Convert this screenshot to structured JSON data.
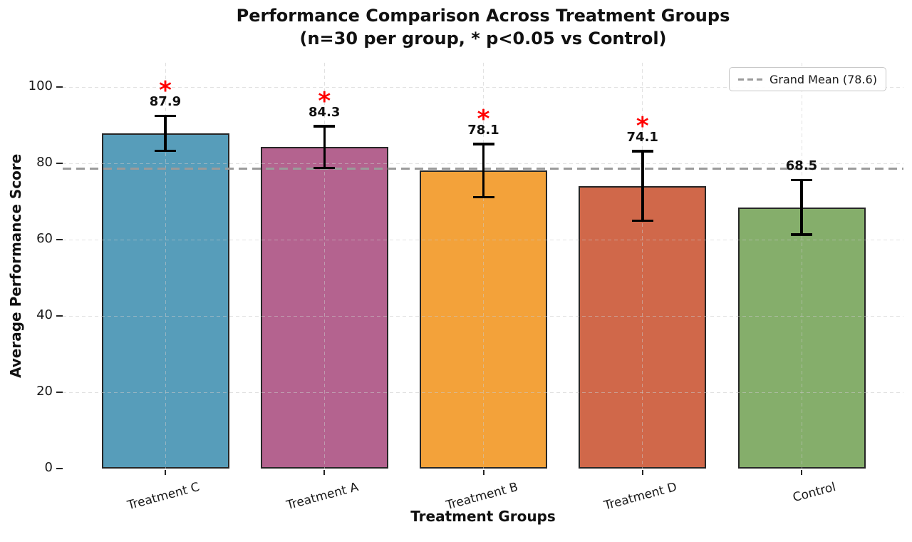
{
  "chart_data": {
    "type": "bar",
    "title": "Performance Comparison Across Treatment Groups",
    "subtitle": "(n=30 per group, * p<0.05 vs Control)",
    "xlabel": "Treatment Groups",
    "ylabel": "Average Performance Score",
    "categories": [
      "Treatment C",
      "Treatment A",
      "Treatment B",
      "Treatment D",
      "Control"
    ],
    "values": [
      87.9,
      84.3,
      78.1,
      74.1,
      68.5
    ],
    "value_labels": [
      "87.9",
      "84.3",
      "78.1",
      "74.1",
      "68.5"
    ],
    "errors": [
      4.6,
      5.5,
      7.0,
      9.2,
      7.2
    ],
    "significant": [
      true,
      true,
      true,
      true,
      false
    ],
    "significance_marker": "*",
    "yticks": [
      0,
      20,
      40,
      60,
      80,
      100
    ],
    "ylim": [
      0,
      106.4
    ],
    "grid": true,
    "grand_mean": 78.6,
    "legend": {
      "label": "Grand Mean (78.6)",
      "position": "upper right"
    },
    "colors": {
      "bars": [
        "#579dba",
        "#b4638f",
        "#f3a23a",
        "#d0684a",
        "#85ae6b"
      ],
      "bar_edge": "#262626",
      "error_bar": "#000000",
      "significance": "#ff0000",
      "grand_mean_line": "#9b9b9b",
      "grid": "rgba(200,200,200,0.55)",
      "text": "#1a1a1a"
    }
  }
}
